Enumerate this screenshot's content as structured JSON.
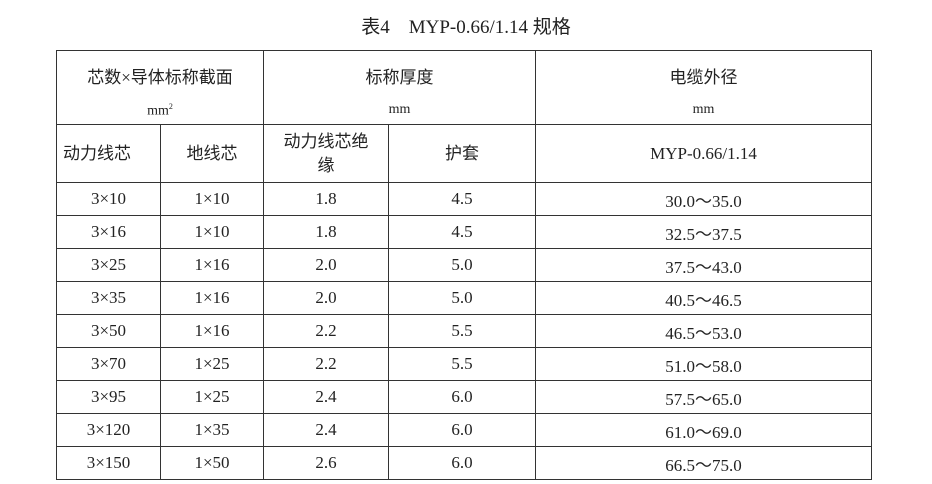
{
  "title": "表4　MYP-0.66/1.14 规格",
  "table": {
    "header": [
      {
        "label": "芯数×导体标称截面",
        "unit": "mm",
        "unit_sup": "2"
      },
      {
        "label": "标称厚度",
        "unit": "mm"
      },
      {
        "label": "电缆外径",
        "unit": "mm"
      }
    ],
    "subheader": [
      "动力线芯",
      "地线芯",
      "动力线芯绝缘",
      "护套",
      "MYP-0.66/1.14"
    ],
    "rows": [
      [
        "3×10",
        "1×10",
        "1.8",
        "4.5",
        "30.0～35.0"
      ],
      [
        "3×16",
        "1×10",
        "1.8",
        "4.5",
        "32.5～37.5"
      ],
      [
        "3×25",
        "1×16",
        "2.0",
        "5.0",
        "37.5～43.0"
      ],
      [
        "3×35",
        "1×16",
        "2.0",
        "5.0",
        "40.5～46.5"
      ],
      [
        "3×50",
        "1×16",
        "2.2",
        "5.5",
        "46.5～53.0"
      ],
      [
        "3×70",
        "1×25",
        "2.2",
        "5.5",
        "51.0～58.0"
      ],
      [
        "3×95",
        "1×25",
        "2.4",
        "6.0",
        "57.5～65.0"
      ],
      [
        "3×120",
        "1×35",
        "2.4",
        "6.0",
        "61.0～69.0"
      ],
      [
        "3×150",
        "1×50",
        "2.6",
        "6.0",
        "66.5～75.0"
      ]
    ]
  }
}
